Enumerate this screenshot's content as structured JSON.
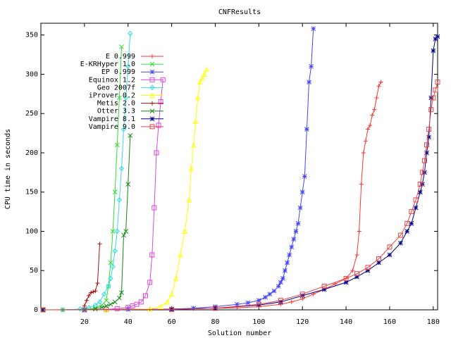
{
  "chart_data": {
    "type": "line",
    "title": "CNFResults",
    "xlabel": "Solution number",
    "ylabel": "CPU time in seconds",
    "xlim": [
      0,
      182
    ],
    "ylim": [
      0,
      365
    ],
    "xticks": [
      20,
      40,
      60,
      80,
      100,
      120,
      140,
      160,
      180
    ],
    "yticks": [
      0,
      50,
      100,
      150,
      200,
      250,
      300,
      350
    ],
    "grid": false,
    "legend_position": "top-left",
    "series": [
      {
        "name": "E 0.999",
        "color": "#ff3333",
        "marker": "plus",
        "x": [
          1,
          10,
          20,
          30,
          40,
          50,
          60,
          70,
          80,
          90,
          100,
          110,
          115,
          120,
          125,
          130,
          135,
          140,
          143,
          145,
          146,
          147,
          148,
          149,
          150,
          151,
          152,
          153,
          154,
          155,
          156
        ],
        "y": [
          0,
          0,
          0.2,
          0.4,
          0.6,
          0.8,
          1,
          1.5,
          2,
          2.5,
          4,
          7,
          10,
          14,
          20,
          26,
          33,
          40,
          50,
          70,
          100,
          160,
          200,
          215,
          230,
          235,
          248,
          255,
          270,
          285,
          290
        ]
      },
      {
        "name": "E-KRHyper 1.0",
        "color": "#33dd33",
        "marker": "x",
        "x": [
          1,
          10,
          20,
          25,
          28,
          30,
          31,
          32,
          33,
          34,
          35,
          36,
          37
        ],
        "y": [
          0,
          0,
          0.5,
          2,
          6,
          12,
          30,
          60,
          100,
          150,
          210,
          270,
          335
        ]
      },
      {
        "name": "EP 0.999",
        "color": "#4444ff",
        "marker": "star",
        "x": [
          1,
          20,
          40,
          60,
          70,
          80,
          90,
          95,
          100,
          103,
          105,
          107,
          109,
          110,
          111,
          112,
          113,
          114,
          115,
          116,
          117,
          118,
          119,
          120,
          121,
          122,
          123,
          124,
          125
        ],
        "y": [
          0,
          0,
          0.5,
          1,
          2,
          4,
          7,
          9,
          12,
          16,
          20,
          24,
          30,
          35,
          40,
          50,
          60,
          70,
          80,
          90,
          100,
          110,
          130,
          150,
          170,
          230,
          290,
          310,
          358
        ]
      },
      {
        "name": "Equinox 1.2",
        "color": "#dd44dd",
        "marker": "square",
        "x": [
          1,
          20,
          30,
          35,
          40,
          42,
          44,
          46,
          48,
          50,
          51,
          52,
          53,
          54,
          55,
          56
        ],
        "y": [
          0,
          0,
          0.5,
          1.5,
          3,
          5,
          7,
          10,
          18,
          35,
          70,
          130,
          200,
          235,
          265,
          293
        ]
      },
      {
        "name": "Geo 2007f",
        "color": "#33dddd",
        "marker": "diamond",
        "x": [
          1,
          10,
          18,
          22,
          25,
          27,
          29,
          31,
          32,
          33,
          34,
          35,
          36,
          37,
          38,
          39,
          40,
          41
        ],
        "y": [
          0,
          0,
          1,
          3,
          6,
          10,
          20,
          30,
          40,
          55,
          75,
          100,
          140,
          180,
          230,
          270,
          310,
          352
        ]
      },
      {
        "name": "iProver 0.2",
        "color": "#ffff00",
        "marker": "triangle",
        "x": [
          1,
          30,
          50,
          55,
          58,
          60,
          62,
          64,
          66,
          68,
          69,
          70,
          71,
          72,
          73,
          74,
          75,
          76
        ],
        "y": [
          0,
          0,
          1,
          4,
          10,
          20,
          40,
          70,
          100,
          140,
          180,
          210,
          240,
          270,
          290,
          295,
          300,
          306
        ]
      },
      {
        "name": "Metis 2.0",
        "color": "#aa1111",
        "marker": "plus",
        "x": [
          20,
          21,
          22,
          23,
          24,
          25,
          26,
          27
        ],
        "y": [
          5,
          12,
          18,
          22,
          23,
          24,
          34,
          84
        ]
      },
      {
        "name": "Otter 3.3",
        "color": "#118811",
        "marker": "x",
        "x": [
          20,
          25,
          28,
          30,
          32,
          34,
          36,
          37,
          38,
          39,
          40,
          41
        ],
        "y": [
          0,
          1,
          3,
          5,
          7,
          10,
          15,
          22,
          95,
          100,
          160,
          222
        ]
      },
      {
        "name": "Vampire 8.1",
        "color": "#000088",
        "marker": "star",
        "x": [
          1,
          60,
          80,
          100,
          110,
          120,
          130,
          140,
          145,
          150,
          155,
          160,
          165,
          168,
          170,
          172,
          174,
          175,
          176,
          177,
          178,
          179,
          180,
          181,
          182
        ],
        "y": [
          0,
          0.5,
          2,
          6,
          10,
          18,
          26,
          35,
          42,
          50,
          60,
          70,
          85,
          100,
          110,
          130,
          150,
          160,
          175,
          200,
          220,
          270,
          330,
          345,
          348
        ]
      },
      {
        "name": "Vampire 9.0",
        "color": "#ee4444",
        "marker": "square",
        "x": [
          1,
          60,
          80,
          100,
          110,
          120,
          130,
          140,
          145,
          150,
          155,
          160,
          165,
          168,
          170,
          172,
          174,
          175,
          176,
          177,
          178,
          179,
          180,
          181,
          182
        ],
        "y": [
          0,
          0.5,
          2,
          7,
          12,
          20,
          30,
          40,
          46,
          54,
          65,
          80,
          95,
          110,
          125,
          140,
          160,
          175,
          190,
          210,
          230,
          255,
          270,
          280,
          290
        ]
      }
    ]
  }
}
